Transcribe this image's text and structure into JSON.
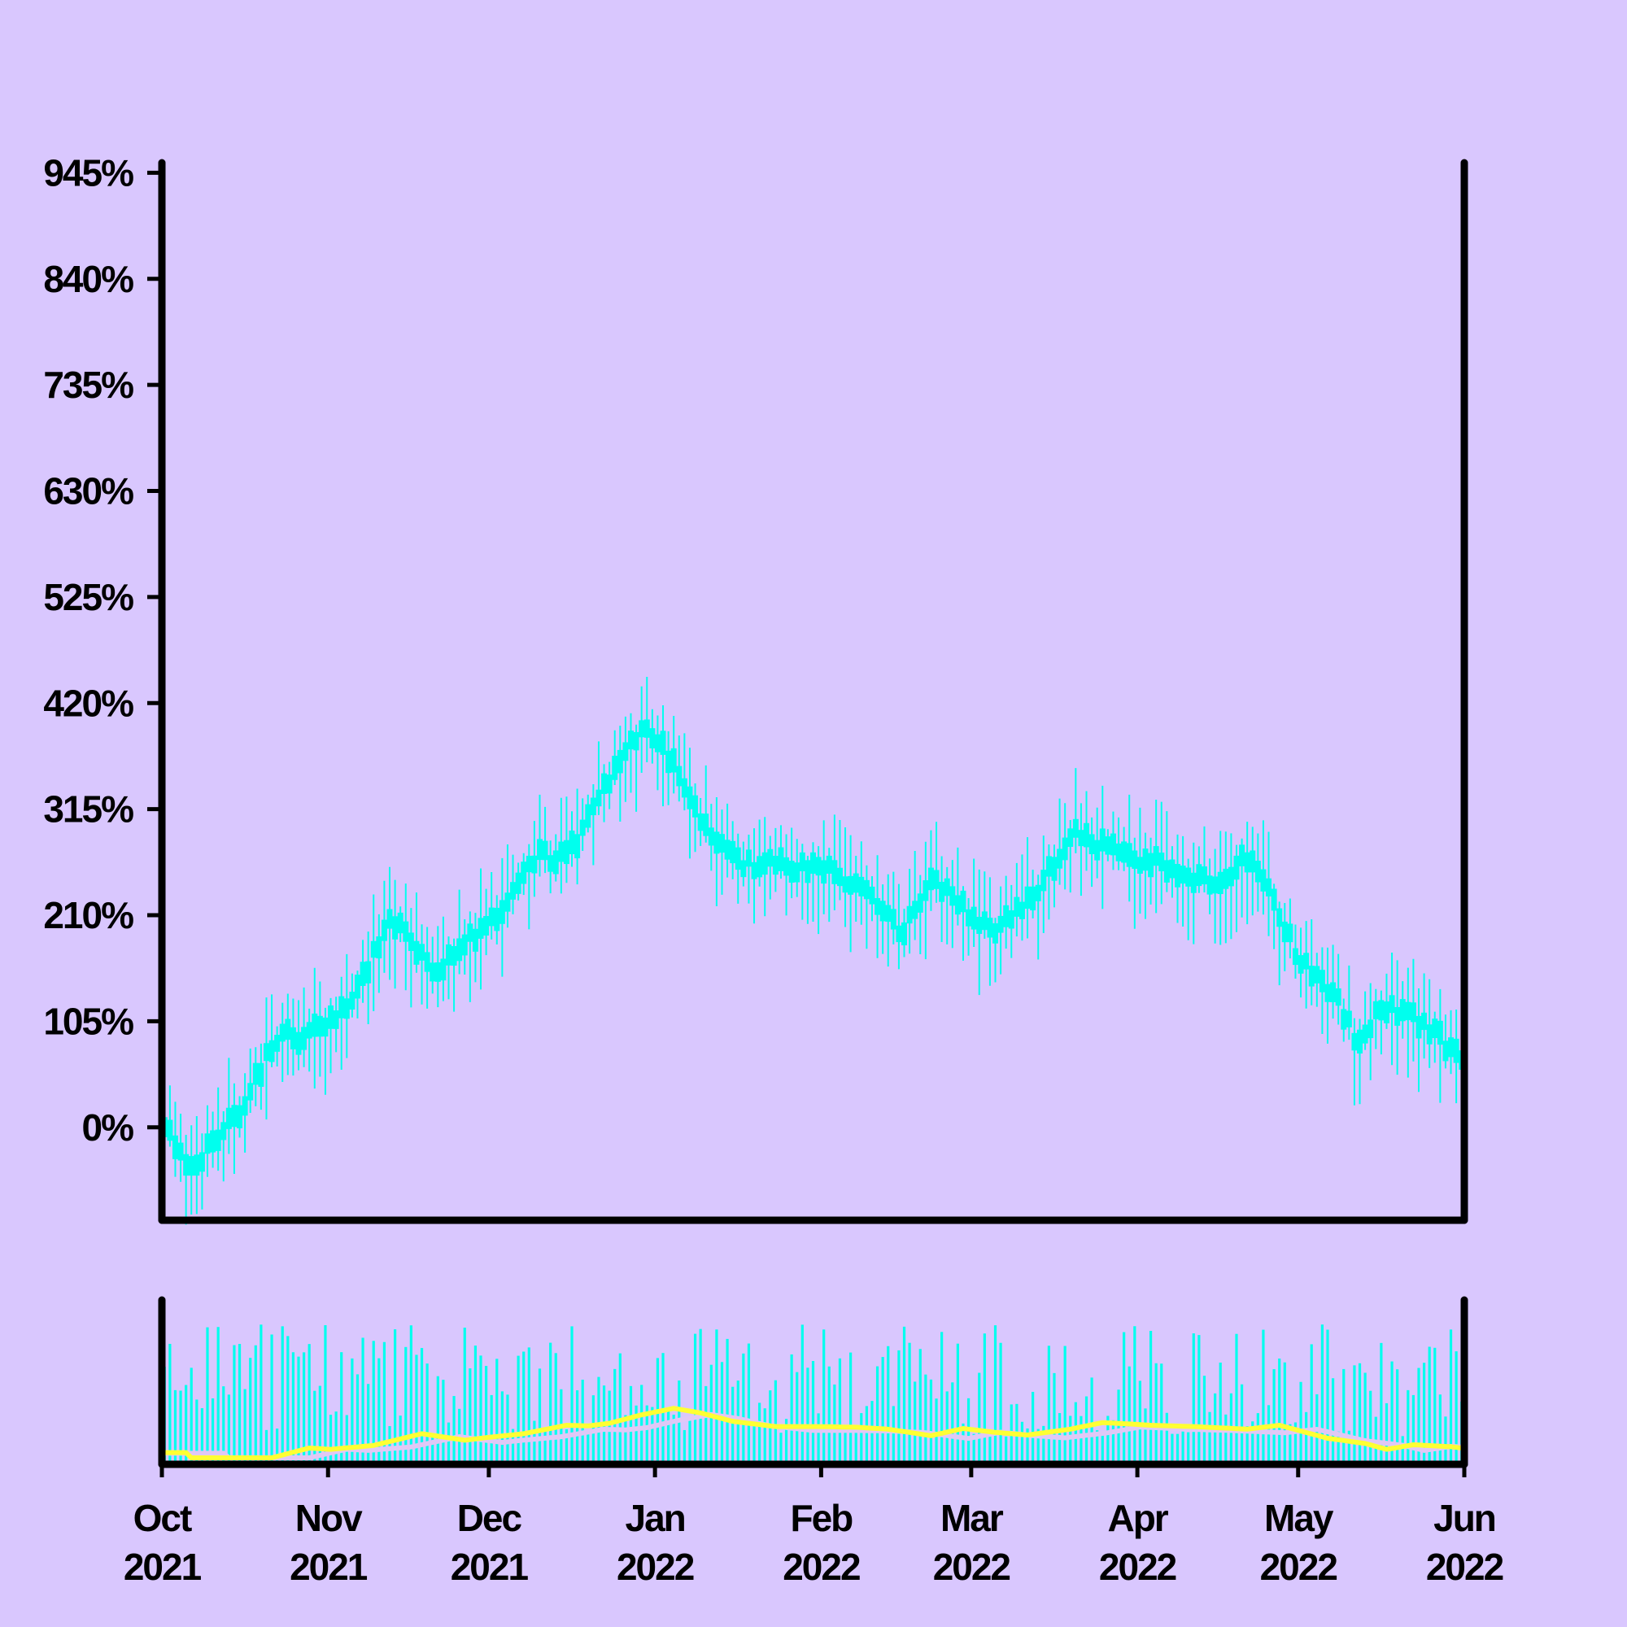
{
  "chart_data": {
    "type": "candlestick",
    "title": "",
    "xlabel": "",
    "ylabel": "",
    "colors": {
      "background": "#d9c7fe",
      "candle": "#00ffee",
      "volume": "#00ffee",
      "ma_fast": "#ffff33",
      "ma_slow": "#e0c8f6",
      "axes": "#000000"
    },
    "x_axis": {
      "start": "2021-10-01",
      "end": "2022-06-01",
      "ticks": [
        {
          "date": "2021-10-01",
          "month": "Oct",
          "year": "2021"
        },
        {
          "date": "2021-11-01",
          "month": "Nov",
          "year": "2021"
        },
        {
          "date": "2021-12-01",
          "month": "Dec",
          "year": "2021"
        },
        {
          "date": "2022-01-01",
          "month": "Jan",
          "year": "2022"
        },
        {
          "date": "2022-02-01",
          "month": "Feb",
          "year": "2022"
        },
        {
          "date": "2022-03-01",
          "month": "Mar",
          "year": "2022"
        },
        {
          "date": "2022-04-01",
          "month": "Apr",
          "year": "2022"
        },
        {
          "date": "2022-05-01",
          "month": "May",
          "year": "2022"
        },
        {
          "date": "2022-06-01",
          "month": "Jun",
          "year": "2022"
        }
      ]
    },
    "y_axis": {
      "unit": "%",
      "ylim": [
        -92,
        955
      ],
      "ticks": [
        {
          "value": 0,
          "label": "0%"
        },
        {
          "value": 105,
          "label": "105%"
        },
        {
          "value": 210,
          "label": "210%"
        },
        {
          "value": 315,
          "label": "315%"
        },
        {
          "value": 420,
          "label": "420%"
        },
        {
          "value": 525,
          "label": "525%"
        },
        {
          "value": 630,
          "label": "630%"
        },
        {
          "value": 735,
          "label": "735%"
        },
        {
          "value": 840,
          "label": "840%"
        },
        {
          "value": 945,
          "label": "945%"
        }
      ]
    },
    "price_keypoints": [
      {
        "date": "2021-10-01",
        "value": 10
      },
      {
        "date": "2021-10-06",
        "value": -40
      },
      {
        "date": "2021-10-10",
        "value": -20
      },
      {
        "date": "2021-10-16",
        "value": 20
      },
      {
        "date": "2021-10-23",
        "value": 95
      },
      {
        "date": "2021-10-27",
        "value": 85
      },
      {
        "date": "2021-11-04",
        "value": 115
      },
      {
        "date": "2021-11-13",
        "value": 205
      },
      {
        "date": "2021-11-17",
        "value": 180
      },
      {
        "date": "2021-11-21",
        "value": 155
      },
      {
        "date": "2021-11-25",
        "value": 175
      },
      {
        "date": "2021-12-02",
        "value": 205
      },
      {
        "date": "2021-12-10",
        "value": 270
      },
      {
        "date": "2021-12-14",
        "value": 265
      },
      {
        "date": "2021-12-18",
        "value": 285
      },
      {
        "date": "2021-12-24",
        "value": 350
      },
      {
        "date": "2021-12-30",
        "value": 400
      },
      {
        "date": "2022-01-04",
        "value": 365
      },
      {
        "date": "2022-01-10",
        "value": 300
      },
      {
        "date": "2022-01-18",
        "value": 260
      },
      {
        "date": "2022-01-26",
        "value": 260
      },
      {
        "date": "2022-02-02",
        "value": 255
      },
      {
        "date": "2022-02-08",
        "value": 240
      },
      {
        "date": "2022-02-16",
        "value": 190
      },
      {
        "date": "2022-02-22",
        "value": 245
      },
      {
        "date": "2022-02-28",
        "value": 215
      },
      {
        "date": "2022-03-06",
        "value": 195
      },
      {
        "date": "2022-03-14",
        "value": 240
      },
      {
        "date": "2022-03-20",
        "value": 290
      },
      {
        "date": "2022-03-25",
        "value": 280
      },
      {
        "date": "2022-03-29",
        "value": 270
      },
      {
        "date": "2022-04-06",
        "value": 260
      },
      {
        "date": "2022-04-16",
        "value": 240
      },
      {
        "date": "2022-04-22",
        "value": 270
      },
      {
        "date": "2022-05-01",
        "value": 170
      },
      {
        "date": "2022-05-08",
        "value": 130
      },
      {
        "date": "2022-05-12",
        "value": 85
      },
      {
        "date": "2022-05-17",
        "value": 120
      },
      {
        "date": "2022-05-24",
        "value": 105
      },
      {
        "date": "2022-05-28",
        "value": 85
      },
      {
        "date": "2022-06-01",
        "value": 60
      }
    ]
  }
}
